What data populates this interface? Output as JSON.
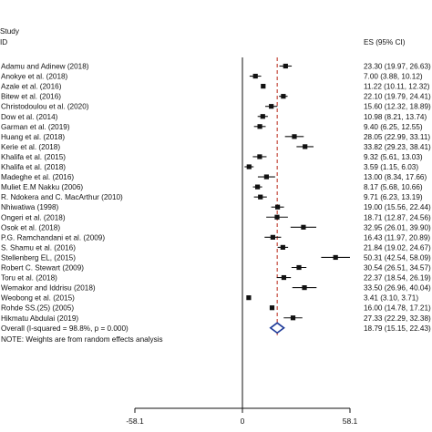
{
  "chart_data": {
    "type": "forest",
    "header": {
      "study": "Study",
      "id": "ID",
      "es": "ES (95% CI)"
    },
    "xlim": [
      -58.1,
      58.1
    ],
    "ticks": [
      {
        "value": -58.1,
        "label": "-58.1"
      },
      {
        "value": 0,
        "label": "0"
      },
      {
        "value": 58.1,
        "label": "58.1"
      }
    ],
    "null_line": 0,
    "pooled_line": 18.79,
    "studies": [
      {
        "label": "Adamu and Adinew (2018)",
        "es": 23.3,
        "lo": 19.97,
        "hi": 26.63,
        "text": "23.30 (19.97, 26.63)"
      },
      {
        "label": "Anokye et al. (2018)",
        "es": 7.0,
        "lo": 3.88,
        "hi": 10.12,
        "text": "7.00 (3.88, 10.12)"
      },
      {
        "label": "Azale et al. (2016)",
        "es": 11.22,
        "lo": 10.11,
        "hi": 12.32,
        "text": "11.22 (10.11, 12.32)"
      },
      {
        "label": "Bitew et al. (2016)",
        "es": 22.1,
        "lo": 19.79,
        "hi": 24.41,
        "text": "22.10 (19.79, 24.41)"
      },
      {
        "label": "Christodoulou et al. (2020)",
        "es": 15.6,
        "lo": 12.32,
        "hi": 18.89,
        "text": "15.60 (12.32, 18.89)"
      },
      {
        "label": "Dow et al. (2014)",
        "es": 10.98,
        "lo": 8.21,
        "hi": 13.74,
        "text": "10.98 (8.21, 13.74)"
      },
      {
        "label": "Garman et al. (2019)",
        "es": 9.4,
        "lo": 6.25,
        "hi": 12.55,
        "text": "9.40 (6.25, 12.55)"
      },
      {
        "label": "Huang et al. (2018)",
        "es": 28.05,
        "lo": 22.99,
        "hi": 33.11,
        "text": "28.05 (22.99, 33.11)"
      },
      {
        "label": "Kerie et al. (2018)",
        "es": 33.82,
        "lo": 29.23,
        "hi": 38.41,
        "text": "33.82 (29.23, 38.41)"
      },
      {
        "label": "Khalifa et al. (2015)",
        "es": 9.32,
        "lo": 5.61,
        "hi": 13.03,
        "text": "9.32 (5.61, 13.03)"
      },
      {
        "label": "Khalifa et al. (2018)",
        "es": 3.59,
        "lo": 1.15,
        "hi": 6.03,
        "text": "3.59 (1.15, 6.03)"
      },
      {
        "label": "Madeghe et al. (2016)",
        "es": 13.0,
        "lo": 8.34,
        "hi": 17.66,
        "text": "13.00 (8.34, 17.66)"
      },
      {
        "label": "Muliet E.M Nakku (2006)",
        "es": 8.17,
        "lo": 5.68,
        "hi": 10.66,
        "text": "8.17 (5.68, 10.66)"
      },
      {
        "label": "R. Ndokera and C. MacArthur (2010)",
        "es": 9.71,
        "lo": 6.23,
        "hi": 13.19,
        "text": "9.71 (6.23, 13.19)"
      },
      {
        "label": "Nhiwatiwa (1998)",
        "es": 19.0,
        "lo": 15.56,
        "hi": 22.44,
        "text": "19.00 (15.56, 22.44)"
      },
      {
        "label": "Ongeri et al. (2018)",
        "es": 18.71,
        "lo": 12.87,
        "hi": 24.56,
        "text": "18.71 (12.87, 24.56)"
      },
      {
        "label": "Osok et al. (2018)",
        "es": 32.95,
        "lo": 26.01,
        "hi": 39.9,
        "text": "32.95 (26.01, 39.90)"
      },
      {
        "label": "P.G. Ramchandani et al. (2009)",
        "es": 16.43,
        "lo": 11.97,
        "hi": 20.89,
        "text": "16.43 (11.97, 20.89)"
      },
      {
        "label": "S. Shamu et al. (2016)",
        "es": 21.84,
        "lo": 19.02,
        "hi": 24.67,
        "text": "21.84 (19.02, 24.67)"
      },
      {
        "label": "Stellenberg EL, (2015)",
        "es": 50.31,
        "lo": 42.54,
        "hi": 58.09,
        "text": "50.31 (42.54, 58.09)"
      },
      {
        "label": "Robert C. Stewart (2009)",
        "es": 30.54,
        "lo": 26.51,
        "hi": 34.57,
        "text": "30.54 (26.51, 34.57)"
      },
      {
        "label": "Toru et al. (2018)",
        "es": 22.37,
        "lo": 18.54,
        "hi": 26.19,
        "text": "22.37 (18.54, 26.19)"
      },
      {
        "label": "Wemakor and Iddrisu (2018)",
        "es": 33.5,
        "lo": 26.96,
        "hi": 40.04,
        "text": "33.50 (26.96, 40.04)"
      },
      {
        "label": "Weobong et al. (2015)",
        "es": 3.41,
        "lo": 3.1,
        "hi": 3.71,
        "text": "3.41 (3.10, 3.71)"
      },
      {
        "label": "Rohde SS.(25) (2005)",
        "es": 16.0,
        "lo": 14.78,
        "hi": 17.21,
        "text": "16.00 (14.78, 17.21)"
      },
      {
        "label": "Hikmatu Abdulai (2019)",
        "es": 27.33,
        "lo": 22.29,
        "hi": 32.38,
        "text": "27.33 (22.29, 32.38)"
      }
    ],
    "overall": {
      "label": "Overall  (I-squared = 98.8%, p = 0.000)",
      "es": 18.79,
      "lo": 15.15,
      "hi": 22.43,
      "text": "18.79 (15.15, 22.43)"
    },
    "note": "NOTE: Weights are from random effects analysis",
    "colors": {
      "pooled_line": "#c0392b",
      "diamond": "#1f3b99",
      "ink": "#111111"
    }
  }
}
